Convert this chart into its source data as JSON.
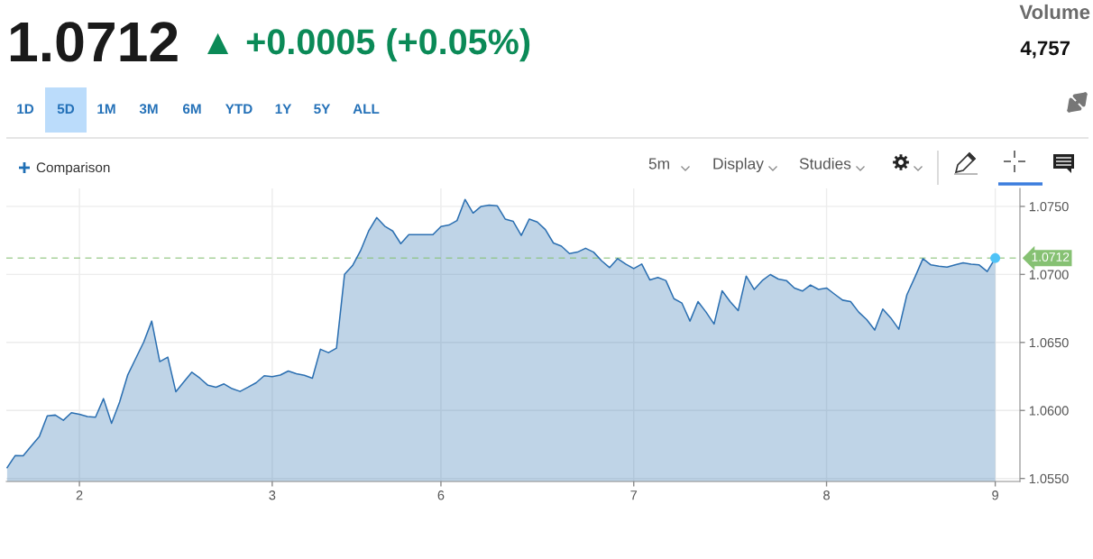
{
  "chart_data": {
    "type": "area",
    "title": "1.0712",
    "subtitle": "▲ +0.0005 (+0.05%)",
    "annotations": [
      "Volume",
      "4,757",
      "1D",
      "5D",
      "1M",
      "3M",
      "6M",
      "YTD",
      "1Y",
      "5Y",
      "ALL",
      "Comparison",
      "5m",
      "Display",
      "Studies"
    ],
    "categories": [
      null,
      null,
      null,
      null,
      null,
      null,
      null,
      null,
      null,
      "2",
      null,
      null,
      null,
      null,
      null,
      null,
      null,
      null,
      null,
      null,
      null,
      null,
      null,
      null,
      null,
      null,
      null,
      null,
      null,
      null,
      null,
      null,
      null,
      "3",
      null,
      null,
      null,
      null,
      null,
      null,
      null,
      null,
      null,
      null,
      null,
      null,
      null,
      null,
      null,
      null,
      null,
      null,
      null,
      null,
      "6",
      null,
      null,
      null,
      null,
      null,
      null,
      null,
      null,
      null,
      null,
      null,
      null,
      null,
      null,
      null,
      null,
      null,
      null,
      null,
      null,
      null,
      null,
      null,
      "7",
      null,
      null,
      null,
      null,
      null,
      null,
      null,
      null,
      null,
      null,
      null,
      null,
      null,
      null,
      null,
      null,
      null,
      null,
      null,
      null,
      null,
      null,
      null,
      "8",
      null,
      null,
      null,
      null,
      null,
      null,
      null,
      null,
      null,
      null,
      null,
      null,
      null,
      null,
      null,
      null,
      null,
      null,
      null,
      null,
      "9"
    ],
    "series": [
      {
        "color": "#2b6fb1",
        "values": [
          1.0558,
          1.05668,
          1.05667,
          1.05738,
          1.05807,
          1.0596,
          1.05966,
          1.05928,
          1.05983,
          1.05972,
          1.05955,
          1.0595,
          1.06087,
          1.05906,
          1.06061,
          1.06259,
          1.06381,
          1.06502,
          1.06657,
          1.06359,
          1.06392,
          1.06138,
          1.0621,
          1.06281,
          1.06237,
          1.06185,
          1.06171,
          1.06195,
          1.0616,
          1.0614,
          1.06171,
          1.06204,
          1.06255,
          1.06248,
          1.0626,
          1.0629,
          1.0627,
          1.06259,
          1.06237,
          1.0645,
          1.06425,
          1.06458,
          1.07,
          1.07065,
          1.07175,
          1.07319,
          1.07418,
          1.07355,
          1.07319,
          1.07226,
          1.07292,
          1.07292,
          1.07292,
          1.07292,
          1.07352,
          1.07363,
          1.07396,
          1.07551,
          1.07451,
          1.075,
          1.0751,
          1.07505,
          1.07407,
          1.0739,
          1.07286,
          1.07407,
          1.07385,
          1.0733,
          1.07231,
          1.07208,
          1.07153,
          1.07164,
          1.07192,
          1.07164,
          1.071,
          1.0705,
          1.07116,
          1.07076,
          1.07043,
          1.07076,
          1.0696,
          1.06977,
          1.06955,
          1.06822,
          1.06789,
          1.06657,
          1.068,
          1.06723,
          1.06635,
          1.0688,
          1.068,
          1.06734,
          1.06988,
          1.06889,
          1.06955,
          1.06999,
          1.06966,
          1.06955,
          1.069,
          1.06878,
          1.06922,
          1.0689,
          1.069,
          1.06855,
          1.06811,
          1.068,
          1.06723,
          1.06668,
          1.06591,
          1.06745,
          1.0668,
          1.06597,
          1.0685,
          1.0698,
          1.07116,
          1.0707,
          1.0706,
          1.07054,
          1.0707,
          1.07085,
          1.07076,
          1.0707,
          1.07021,
          1.0712
        ]
      },
      {
        "type": "scatter",
        "marker": "circle",
        "color": "#4fc3f7",
        "values": [
          null,
          null,
          null,
          null,
          null,
          null,
          null,
          null,
          null,
          null,
          null,
          null,
          null,
          null,
          null,
          null,
          null,
          null,
          null,
          null,
          null,
          null,
          null,
          null,
          null,
          null,
          null,
          null,
          null,
          null,
          null,
          null,
          null,
          null,
          null,
          null,
          null,
          null,
          null,
          null,
          null,
          null,
          null,
          null,
          null,
          null,
          null,
          null,
          null,
          null,
          null,
          null,
          null,
          null,
          null,
          null,
          null,
          null,
          null,
          null,
          null,
          null,
          null,
          null,
          null,
          null,
          null,
          null,
          null,
          null,
          null,
          null,
          null,
          null,
          null,
          null,
          null,
          null,
          null,
          null,
          null,
          null,
          null,
          null,
          null,
          null,
          null,
          null,
          null,
          null,
          null,
          null,
          null,
          null,
          null,
          null,
          null,
          null,
          null,
          null,
          null,
          null,
          null,
          null,
          null,
          null,
          null,
          null,
          null,
          null,
          null,
          null,
          null,
          null,
          null,
          null,
          null,
          null,
          null,
          null,
          null,
          null,
          null,
          1.0712
        ]
      }
    ],
    "ylim": [
      1.05478,
      1.07632
    ],
    "yticks": [
      {
        "value": 1.055,
        "label": "1.0550"
      },
      {
        "value": 1.06,
        "label": "1.0600"
      },
      {
        "value": 1.065,
        "label": "1.0650"
      },
      {
        "value": 1.07,
        "label": "1.0700"
      },
      {
        "value": 1.075,
        "label": "1.0750"
      }
    ],
    "ref_lines": [
      {
        "axis": "y",
        "value": 1.0712,
        "label": "1.0712",
        "color": "#86c173",
        "line_style": "dashed"
      }
    ],
    "grid": true
  }
}
